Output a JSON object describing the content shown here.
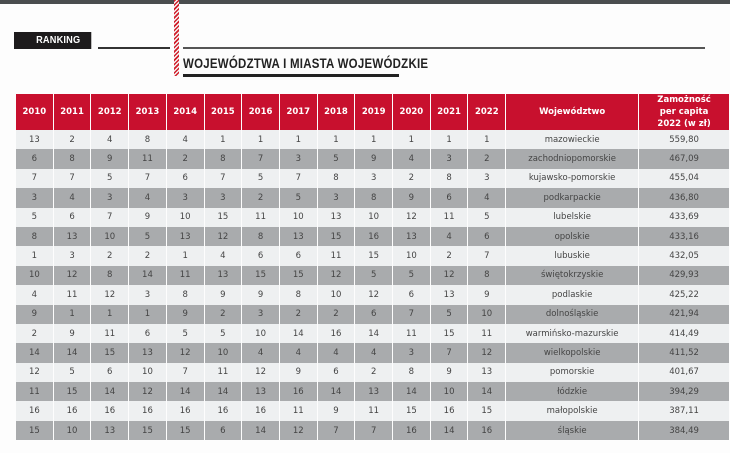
{
  "header": {
    "section_label": "RANKING",
    "title": "WOJEWÓDZTWA I MIASTA WOJEWÓDZKIE"
  },
  "colors": {
    "header_red": "#c8102e",
    "row_light": "#eef0f1",
    "row_dark": "#a9abad",
    "tab_black": "#1d1b1c"
  },
  "table": {
    "columns": [
      "2010",
      "2011",
      "2012",
      "2013",
      "2014",
      "2015",
      "2016",
      "2017",
      "2018",
      "2019",
      "2020",
      "2021",
      "2022",
      "Województwo",
      "Zamożność per capita 2022 (w zł)"
    ],
    "rows": [
      {
        "ranks": [
          "13",
          "2",
          "4",
          "8",
          "4",
          "1",
          "1",
          "1",
          "1",
          "1",
          "1",
          "1",
          "1"
        ],
        "name": "mazowieckie",
        "value": "559,80"
      },
      {
        "ranks": [
          "6",
          "8",
          "9",
          "11",
          "2",
          "8",
          "7",
          "3",
          "5",
          "9",
          "4",
          "3",
          "2"
        ],
        "name": "zachodniopomorskie",
        "value": "467,09"
      },
      {
        "ranks": [
          "7",
          "7",
          "5",
          "7",
          "6",
          "7",
          "5",
          "7",
          "8",
          "3",
          "2",
          "8",
          "3"
        ],
        "name": "kujawsko-pomorskie",
        "value": "455,04"
      },
      {
        "ranks": [
          "3",
          "4",
          "3",
          "4",
          "3",
          "3",
          "2",
          "5",
          "3",
          "8",
          "9",
          "6",
          "4"
        ],
        "name": "podkarpackie",
        "value": "436,80"
      },
      {
        "ranks": [
          "5",
          "6",
          "7",
          "9",
          "10",
          "15",
          "11",
          "10",
          "13",
          "10",
          "12",
          "11",
          "5"
        ],
        "name": "lubelskie",
        "value": "433,69"
      },
      {
        "ranks": [
          "8",
          "13",
          "10",
          "5",
          "13",
          "12",
          "8",
          "13",
          "15",
          "16",
          "13",
          "4",
          "6"
        ],
        "name": "opolskie",
        "value": "433,16"
      },
      {
        "ranks": [
          "1",
          "3",
          "2",
          "2",
          "1",
          "4",
          "6",
          "6",
          "11",
          "15",
          "10",
          "2",
          "7"
        ],
        "name": "lubuskie",
        "value": "432,05"
      },
      {
        "ranks": [
          "10",
          "12",
          "8",
          "14",
          "11",
          "13",
          "15",
          "15",
          "12",
          "5",
          "5",
          "12",
          "8"
        ],
        "name": "świętokrzyskie",
        "value": "429,93"
      },
      {
        "ranks": [
          "4",
          "11",
          "12",
          "3",
          "8",
          "9",
          "9",
          "8",
          "10",
          "12",
          "6",
          "13",
          "9"
        ],
        "name": "podlaskie",
        "value": "425,22"
      },
      {
        "ranks": [
          "9",
          "1",
          "1",
          "1",
          "9",
          "2",
          "3",
          "2",
          "2",
          "6",
          "7",
          "5",
          "10"
        ],
        "name": "dolnośląskie",
        "value": "421,94"
      },
      {
        "ranks": [
          "2",
          "9",
          "11",
          "6",
          "5",
          "5",
          "10",
          "14",
          "16",
          "14",
          "11",
          "15",
          "11"
        ],
        "name": "warmińsko-mazurskie",
        "value": "414,49"
      },
      {
        "ranks": [
          "14",
          "14",
          "15",
          "13",
          "12",
          "10",
          "4",
          "4",
          "4",
          "4",
          "3",
          "7",
          "12"
        ],
        "name": "wielkopolskie",
        "value": "411,52"
      },
      {
        "ranks": [
          "12",
          "5",
          "6",
          "10",
          "7",
          "11",
          "12",
          "9",
          "6",
          "2",
          "8",
          "9",
          "13"
        ],
        "name": "pomorskie",
        "value": "401,67"
      },
      {
        "ranks": [
          "11",
          "15",
          "14",
          "12",
          "14",
          "14",
          "13",
          "16",
          "14",
          "13",
          "14",
          "10",
          "14"
        ],
        "name": "łódzkie",
        "value": "394,29"
      },
      {
        "ranks": [
          "16",
          "16",
          "16",
          "16",
          "16",
          "16",
          "16",
          "11",
          "9",
          "11",
          "15",
          "16",
          "15"
        ],
        "name": "małopolskie",
        "value": "387,11"
      },
      {
        "ranks": [
          "15",
          "10",
          "13",
          "15",
          "15",
          "6",
          "14",
          "12",
          "7",
          "7",
          "16",
          "14",
          "16"
        ],
        "name": "śląskie",
        "value": "384,49"
      }
    ]
  }
}
